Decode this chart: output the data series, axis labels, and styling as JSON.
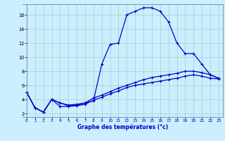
{
  "title": "Graphe des températures (°c)",
  "background_color": "#cceeff",
  "grid_color": "#aacccc",
  "line_color": "#0000cc",
  "xlim": [
    -0.5,
    23.5
  ],
  "ylim": [
    1.5,
    17.5
  ],
  "xticks": [
    0,
    1,
    2,
    3,
    4,
    5,
    6,
    7,
    8,
    9,
    10,
    11,
    12,
    13,
    14,
    15,
    16,
    17,
    18,
    19,
    20,
    21,
    22,
    23
  ],
  "yticks": [
    2,
    4,
    6,
    8,
    10,
    12,
    14,
    16
  ],
  "line1_x": [
    0,
    1,
    2,
    3,
    4,
    5,
    6,
    7,
    8,
    9,
    10,
    11,
    12,
    13,
    14,
    15,
    16,
    17,
    18,
    19,
    20,
    21,
    22,
    23
  ],
  "line1_y": [
    5.0,
    2.8,
    2.2,
    4.0,
    3.5,
    3.2,
    3.3,
    3.5,
    3.8,
    9.0,
    11.8,
    12.0,
    16.0,
    16.5,
    17.0,
    17.0,
    16.5,
    15.0,
    12.0,
    10.5,
    10.5,
    9.0,
    7.5,
    7.0
  ],
  "line2_x": [
    0,
    1,
    2,
    3,
    4,
    5,
    6,
    7,
    8,
    9,
    10,
    11,
    12,
    13,
    14,
    15,
    16,
    17,
    18,
    19,
    20,
    21,
    22,
    23
  ],
  "line2_y": [
    5.0,
    2.8,
    2.2,
    4.0,
    3.5,
    3.1,
    3.2,
    3.5,
    4.2,
    4.6,
    5.1,
    5.6,
    6.0,
    6.4,
    6.8,
    7.1,
    7.3,
    7.5,
    7.7,
    8.0,
    8.0,
    7.8,
    7.5,
    7.0
  ],
  "line3_x": [
    0,
    1,
    2,
    3,
    4,
    5,
    6,
    7,
    8,
    9,
    10,
    11,
    12,
    13,
    14,
    15,
    16,
    17,
    18,
    19,
    20,
    21,
    22,
    23
  ],
  "line3_y": [
    5.0,
    2.8,
    2.2,
    4.0,
    3.0,
    3.0,
    3.1,
    3.3,
    3.9,
    4.3,
    4.8,
    5.2,
    5.7,
    6.0,
    6.2,
    6.4,
    6.6,
    6.8,
    7.0,
    7.3,
    7.5,
    7.3,
    7.0,
    6.9
  ]
}
